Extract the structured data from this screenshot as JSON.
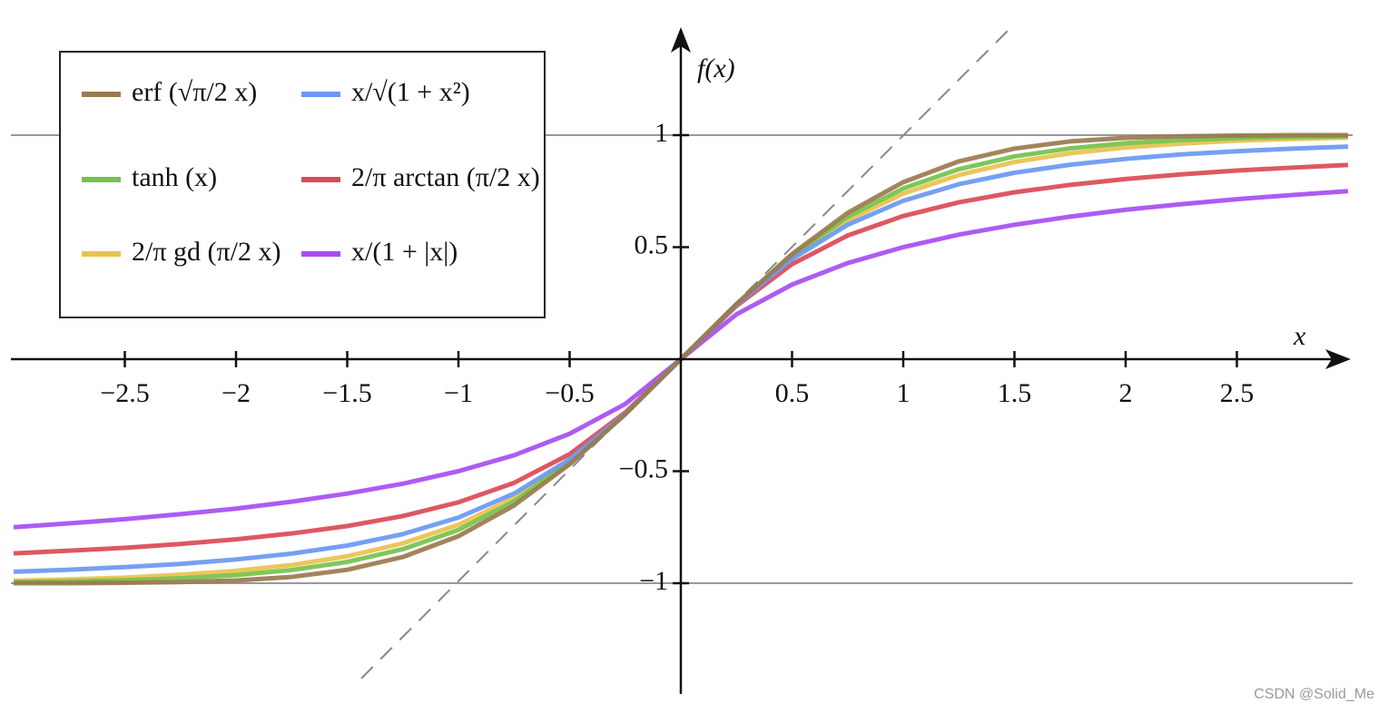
{
  "chart_data": {
    "type": "line",
    "x_label": "x",
    "y_label": "f(x)",
    "x": [
      -3,
      -2.75,
      -2.5,
      -2.25,
      -2,
      -1.75,
      -1.5,
      -1.25,
      -1,
      -0.75,
      -0.5,
      -0.25,
      0,
      0.25,
      0.5,
      0.75,
      1,
      1.25,
      1.5,
      1.75,
      2,
      2.25,
      2.5,
      2.75,
      3
    ],
    "series": [
      {
        "name": "erf (√π/2 x)",
        "color": "#9b7a4e",
        "values": [
          -1.0,
          -1.0,
          -0.998,
          -0.995,
          -0.988,
          -0.972,
          -0.94,
          -0.883,
          -0.79,
          -0.653,
          -0.469,
          -0.246,
          0,
          0.246,
          0.469,
          0.653,
          0.79,
          0.883,
          0.94,
          0.972,
          0.988,
          0.995,
          0.998,
          1.0,
          1.0
        ]
      },
      {
        "name": "x/√(1 + x²)",
        "color": "#6a98f0",
        "values": [
          -0.949,
          -0.94,
          -0.928,
          -0.914,
          -0.894,
          -0.868,
          -0.832,
          -0.781,
          -0.707,
          -0.6,
          -0.447,
          -0.243,
          0,
          0.243,
          0.447,
          0.6,
          0.707,
          0.781,
          0.832,
          0.868,
          0.894,
          0.914,
          0.928,
          0.94,
          0.949
        ]
      },
      {
        "name": "tanh (x)",
        "color": "#74c24c",
        "values": [
          -0.995,
          -0.992,
          -0.987,
          -0.978,
          -0.964,
          -0.941,
          -0.905,
          -0.848,
          -0.762,
          -0.635,
          -0.462,
          -0.245,
          0,
          0.245,
          0.462,
          0.635,
          0.762,
          0.848,
          0.905,
          0.941,
          0.964,
          0.978,
          0.987,
          0.992,
          0.995
        ]
      },
      {
        "name": "2/π arctan (π/2 x)",
        "color": "#db4a52",
        "values": [
          -0.867,
          -0.855,
          -0.842,
          -0.825,
          -0.804,
          -0.778,
          -0.745,
          -0.7,
          -0.639,
          -0.552,
          -0.424,
          -0.238,
          0,
          0.238,
          0.424,
          0.552,
          0.639,
          0.7,
          0.745,
          0.778,
          0.804,
          0.825,
          0.842,
          0.855,
          0.867
        ]
      },
      {
        "name": "2/π gd (π/2 x)",
        "color": "#e8c24e",
        "values": [
          -0.989,
          -0.983,
          -0.975,
          -0.962,
          -0.945,
          -0.919,
          -0.88,
          -0.822,
          -0.739,
          -0.62,
          -0.455,
          -0.244,
          0,
          0.244,
          0.455,
          0.62,
          0.739,
          0.822,
          0.88,
          0.919,
          0.945,
          0.962,
          0.975,
          0.983,
          0.989
        ]
      },
      {
        "name": "x/(1 + |x|)",
        "color": "#a64ef2",
        "values": [
          -0.75,
          -0.733,
          -0.714,
          -0.692,
          -0.667,
          -0.636,
          -0.6,
          -0.556,
          -0.5,
          -0.429,
          -0.333,
          -0.2,
          0,
          0.2,
          0.333,
          0.429,
          0.5,
          0.556,
          0.6,
          0.636,
          0.667,
          0.692,
          0.714,
          0.733,
          0.75
        ]
      }
    ],
    "xlim": [
      -3,
      3
    ],
    "ylim": [
      -1.5,
      1.5
    ],
    "xticks": [
      {
        "value": -2.5,
        "label": "−2.5"
      },
      {
        "value": -2,
        "label": "−2"
      },
      {
        "value": -1.5,
        "label": "−1.5"
      },
      {
        "value": -1,
        "label": "−1"
      },
      {
        "value": -0.5,
        "label": "−0.5"
      },
      0.5,
      1,
      1.5,
      2,
      2.5
    ],
    "yticks": [
      {
        "value": -1,
        "label": "−1"
      },
      {
        "value": -0.5,
        "label": "−0.5"
      },
      0.5,
      1
    ],
    "legend": "upper left"
  },
  "watermark": "CSDN @Solid_Me"
}
